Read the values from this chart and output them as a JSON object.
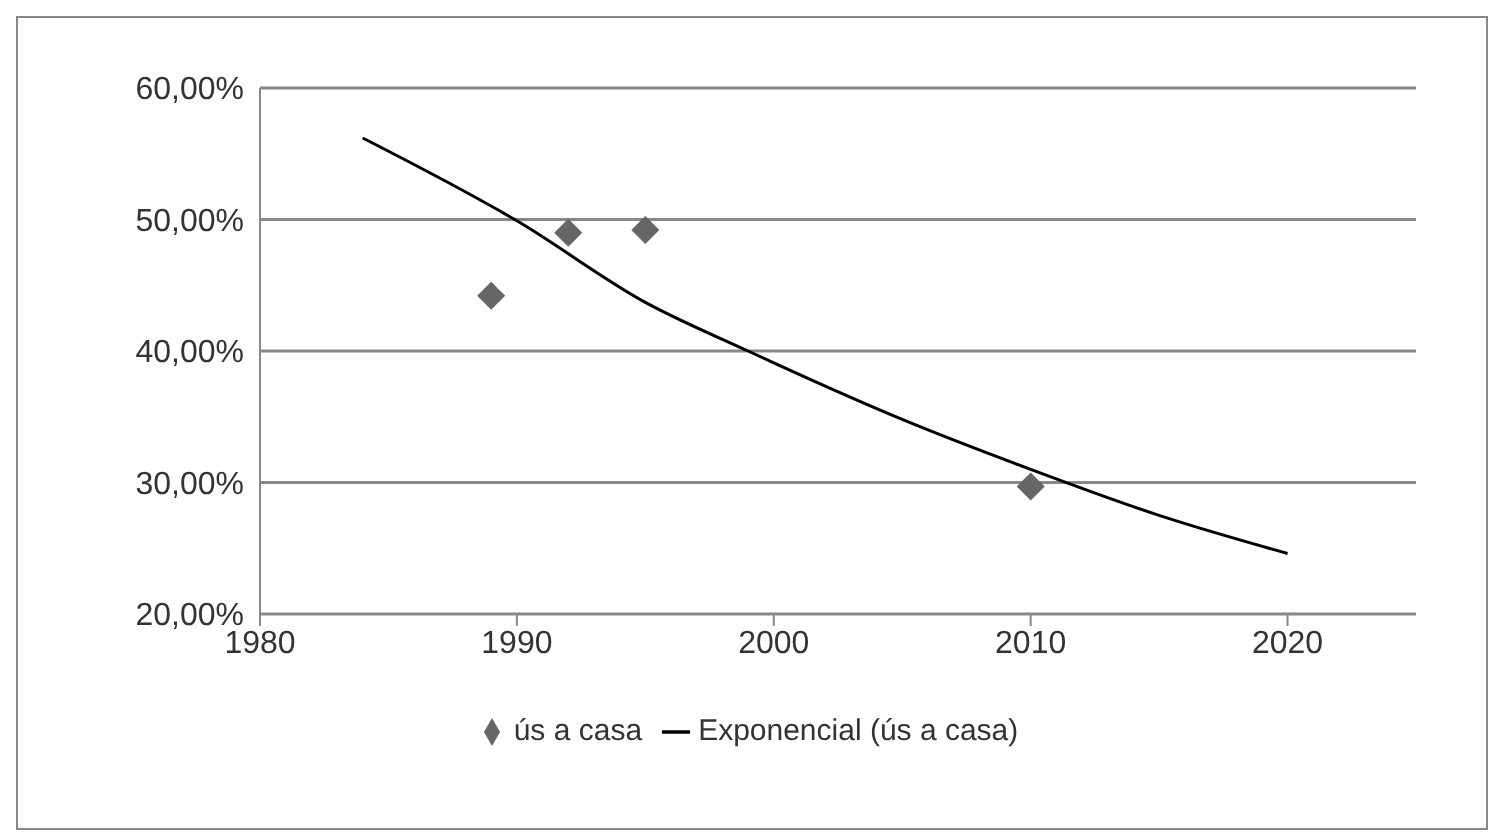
{
  "chart_data": {
    "type": "scatter",
    "xlim": [
      1980,
      2025
    ],
    "xticks": [
      1980,
      1990,
      2000,
      2010,
      2020
    ],
    "ylim": [
      20,
      60
    ],
    "yticks": [
      {
        "value": 20,
        "label": "20,00%"
      },
      {
        "value": 30,
        "label": "30,00%"
      },
      {
        "value": 40,
        "label": "40,00%"
      },
      {
        "value": 50,
        "label": "50,00%"
      },
      {
        "value": 60,
        "label": "60,00%"
      }
    ],
    "grid": "y",
    "legend": "bottom",
    "series": [
      {
        "name": "ús a casa",
        "color": "#666666",
        "marker": "diamond",
        "x": [
          1989,
          1992,
          1995,
          2010
        ],
        "values": [
          44.2,
          49.0,
          49.2,
          29.7
        ]
      },
      {
        "name": "Exponencial (ús a casa)",
        "type": "line",
        "color": "#000000",
        "marker": "none",
        "line_style": "solid",
        "x": [
          1984,
          1990,
          1995,
          1999,
          2000,
          2005,
          2010,
          2015,
          2020
        ],
        "values": [
          56.2,
          49.9,
          43.7,
          40.0,
          39.1,
          34.8,
          31.0,
          27.5,
          24.6
        ]
      }
    ]
  }
}
